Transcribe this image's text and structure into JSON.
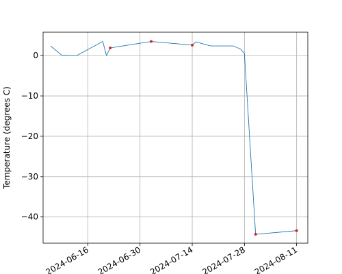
{
  "chart_data": {
    "type": "line",
    "title": "",
    "xlabel": "",
    "ylabel": "Temperature (degrees C)",
    "x_ticks": [
      "2024-06-16",
      "2024-06-30",
      "2024-07-14",
      "2024-07-28",
      "2024-08-11"
    ],
    "x_tick_labels": [
      "2024-06-16",
      "2024-06-30",
      "2024-07-14",
      "2024-07-28",
      "2024-08-11"
    ],
    "y_ticks": [
      0,
      -10,
      -20,
      -30,
      -40
    ],
    "y_tick_labels": [
      "0",
      "−10",
      "−20",
      "−30",
      "−40"
    ],
    "xlim": [
      "2024-06-04",
      "2024-08-14"
    ],
    "ylim": [
      -46.5,
      5.8
    ],
    "grid": true,
    "series": [
      {
        "color": "#1f77b4",
        "x": [
          "2024-06-06",
          "2024-06-09",
          "2024-06-13",
          "2024-06-20",
          "2024-06-21",
          "2024-06-22",
          "2024-07-03",
          "2024-07-14",
          "2024-07-15",
          "2024-07-19",
          "2024-07-25",
          "2024-07-27",
          "2024-07-28",
          "2024-07-31",
          "2024-08-11"
        ],
        "y": [
          2.4,
          0.1,
          0.0,
          3.5,
          0.0,
          1.9,
          3.5,
          2.6,
          3.4,
          2.4,
          2.4,
          1.6,
          0.5,
          -44.3,
          -43.4
        ]
      }
    ],
    "highlighted_points": {
      "color": "#d62728",
      "x": [
        "2024-06-22",
        "2024-07-03",
        "2024-07-14",
        "2024-07-31",
        "2024-08-11"
      ],
      "y": [
        1.9,
        3.5,
        2.6,
        -44.3,
        -43.4
      ]
    }
  }
}
